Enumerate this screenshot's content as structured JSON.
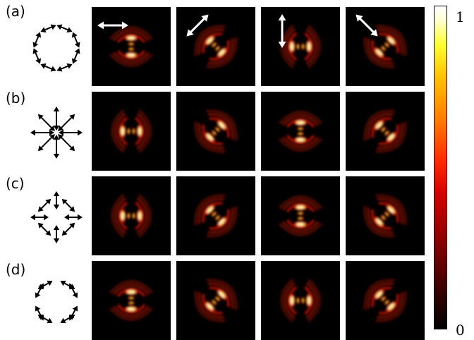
{
  "rows": [
    {
      "label": "(a)",
      "icon": "azimuthal-polarization-icon"
    },
    {
      "label": "(b)",
      "icon": "radial-polarization-icon"
    },
    {
      "label": "(c)",
      "icon": "hybrid-polarization-icon"
    },
    {
      "label": "(d)",
      "icon": "square-vortex-polarization-icon"
    }
  ],
  "columns": [
    {
      "icon": "horizontal-polarizer-icon",
      "angle_deg": 0
    },
    {
      "icon": "diagonal-polarizer-icon",
      "angle_deg": 45
    },
    {
      "icon": "vertical-polarizer-icon",
      "angle_deg": 90
    },
    {
      "icon": "antidiagonal-polarizer-icon",
      "angle_deg": 135
    }
  ],
  "patterns": [
    [
      "horizontal",
      "diagonal",
      "vertical",
      "antidiagonal"
    ],
    [
      "vertical",
      "antidiagonal",
      "horizontal",
      "diagonal"
    ],
    [
      "vertical",
      "diagonal",
      "horizontal",
      "antidiagonal"
    ],
    [
      "horizontal",
      "antidiagonal",
      "vertical",
      "diagonal"
    ]
  ],
  "colorbar": {
    "max_label": "1",
    "min_label": "0",
    "colormap": "hot"
  }
}
